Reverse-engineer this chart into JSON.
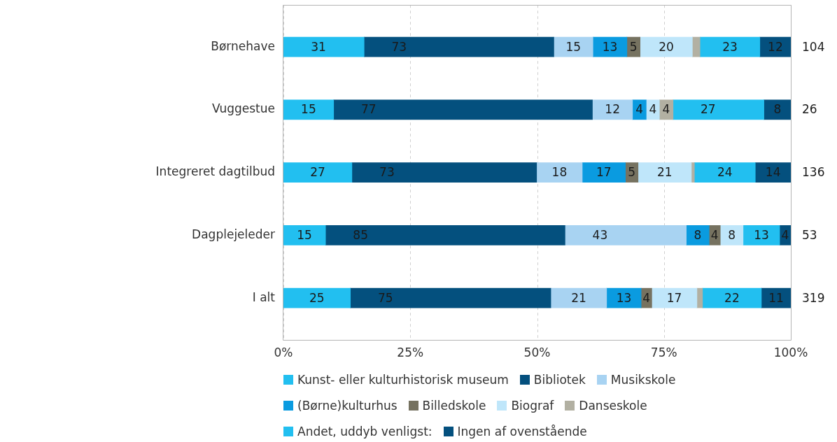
{
  "chart_data": {
    "type": "bar",
    "orientation": "horizontal",
    "stacked": true,
    "categories": [
      "Børnehave",
      "Vuggestue",
      "Integreret dagtilbud",
      "Dagplejeleder",
      "I alt"
    ],
    "series": [
      {
        "name": "Kunst- eller kulturhistorisk museum",
        "color": "#22bff0",
        "values": [
          15.9,
          9.9,
          13.5,
          8.3,
          13.2
        ]
      },
      {
        "name": "Bibliotek",
        "color": "#04507e",
        "values": [
          37.4,
          51.0,
          36.4,
          47.2,
          39.5
        ]
      },
      {
        "name": "Musikskole",
        "color": "#a8d3f2",
        "values": [
          7.7,
          7.9,
          9.0,
          23.9,
          11.0
        ]
      },
      {
        "name": "(Børne)kulturhus",
        "color": "#0a9be0",
        "values": [
          6.7,
          2.7,
          8.5,
          4.5,
          6.8
        ]
      },
      {
        "name": "Billedskole",
        "color": "#767260",
        "values": [
          2.6,
          null,
          2.5,
          2.2,
          2.1
        ]
      },
      {
        "name": "Biograf",
        "color": "#bfe6fa",
        "values": [
          10.3,
          2.6,
          10.5,
          4.5,
          8.9
        ]
      },
      {
        "name": "Danseskole",
        "color": "#b2b0a2",
        "values": [
          1.5,
          2.7,
          0.6,
          null,
          1.1
        ]
      },
      {
        "name": "Andet, uddyb venligst:",
        "color": "#22bff0",
        "values": [
          11.8,
          17.9,
          12.0,
          7.2,
          11.6
        ]
      },
      {
        "name": "Ingen af ovenstående",
        "color": "#04507e",
        "values": [
          6.1,
          5.3,
          7.0,
          2.2,
          5.8
        ]
      }
    ],
    "xlim": [
      0,
      100
    ],
    "xticks": [
      {
        "value": 0,
        "label": "0%"
      },
      {
        "value": 25,
        "label": "25%"
      },
      {
        "value": 50,
        "label": "50%"
      },
      {
        "value": 75,
        "label": "75%"
      },
      {
        "value": 100,
        "label": "100%"
      }
    ],
    "grid": "x",
    "legend": "bottom",
    "annotations": [
      {
        "text": "31",
        "x": 0,
        "y": "Børnehave"
      },
      {
        "text": "73",
        "x": 15.9,
        "y": "Børnehave"
      },
      {
        "text": "15",
        "x": 53.3,
        "y": "Børnehave"
      },
      {
        "text": "13",
        "x": 61.0,
        "y": "Børnehave"
      },
      {
        "text": "5",
        "x": 67.7,
        "y": "Børnehave"
      },
      {
        "text": "20",
        "x": 70.3,
        "y": "Børnehave"
      },
      {
        "text": "23",
        "x": 82.1,
        "y": "Børnehave"
      },
      {
        "text": "12",
        "x": 93.9,
        "y": "Børnehave"
      },
      {
        "text": "15",
        "x": 0,
        "y": "Vuggestue"
      },
      {
        "text": "77",
        "x": 9.9,
        "y": "Vuggestue"
      },
      {
        "text": "12",
        "x": 60.9,
        "y": "Vuggestue"
      },
      {
        "text": "4",
        "x": 68.8,
        "y": "Vuggestue"
      },
      {
        "text": "4",
        "x": 71.5,
        "y": "Vuggestue"
      },
      {
        "text": "4",
        "x": 74.1,
        "y": "Vuggestue"
      },
      {
        "text": "27",
        "x": 76.8,
        "y": "Vuggestue"
      },
      {
        "text": "8",
        "x": 94.7,
        "y": "Vuggestue"
      },
      {
        "text": "27",
        "x": 0,
        "y": "Integreret dagtilbud"
      },
      {
        "text": "73",
        "x": 13.5,
        "y": "Integreret dagtilbud"
      },
      {
        "text": "18",
        "x": 49.9,
        "y": "Integreret dagtilbud"
      },
      {
        "text": "17",
        "x": 58.9,
        "y": "Integreret dagtilbud"
      },
      {
        "text": "5",
        "x": 67.4,
        "y": "Integreret dagtilbud"
      },
      {
        "text": "21",
        "x": 69.9,
        "y": "Integreret dagtilbud"
      },
      {
        "text": "24",
        "x": 81.0,
        "y": "Integreret dagtilbud"
      },
      {
        "text": "14",
        "x": 93.0,
        "y": "Integreret dagtilbud"
      },
      {
        "text": "15",
        "x": 0,
        "y": "Dagplejeleder"
      },
      {
        "text": "85",
        "x": 8.3,
        "y": "Dagplejeleder"
      },
      {
        "text": "43",
        "x": 55.5,
        "y": "Dagplejeleder"
      },
      {
        "text": "8",
        "x": 79.4,
        "y": "Dagplejeleder"
      },
      {
        "text": "4",
        "x": 83.9,
        "y": "Dagplejeleder"
      },
      {
        "text": "8",
        "x": 86.1,
        "y": "Dagplejeleder"
      },
      {
        "text": "13",
        "x": 90.6,
        "y": "Dagplejeleder"
      },
      {
        "text": "4",
        "x": 97.8,
        "y": "Dagplejeleder"
      },
      {
        "text": "25",
        "x": 0,
        "y": "I alt"
      },
      {
        "text": "75",
        "x": 13.2,
        "y": "I alt"
      },
      {
        "text": "21",
        "x": 52.7,
        "y": "I alt"
      },
      {
        "text": "13",
        "x": 63.7,
        "y": "I alt"
      },
      {
        "text": "4",
        "x": 70.5,
        "y": "I alt"
      },
      {
        "text": "17",
        "x": 72.6,
        "y": "I alt"
      },
      {
        "text": "22",
        "x": 82.6,
        "y": "I alt"
      },
      {
        "text": "11",
        "x": 94.2,
        "y": "I alt"
      },
      {
        "text": "104",
        "x": 100,
        "y": "Børnehave"
      },
      {
        "text": "26",
        "x": 100,
        "y": "Vuggestue"
      },
      {
        "text": "136",
        "x": 100,
        "y": "Integreret dagtilbud"
      },
      {
        "text": "53",
        "x": 100,
        "y": "Dagplejeleder"
      },
      {
        "text": "319",
        "x": 100,
        "y": "I alt"
      }
    ]
  }
}
